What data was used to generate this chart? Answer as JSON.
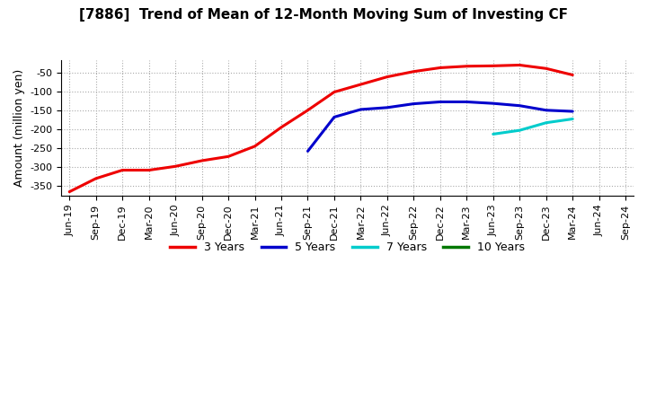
{
  "title": "[7886]  Trend of Mean of 12-Month Moving Sum of Investing CF",
  "ylabel": "Amount (million yen)",
  "background_color": "#ffffff",
  "plot_bg_color": "#ffffff",
  "grid_color": "#aaaaaa",
  "ylim": [
    -375,
    -18
  ],
  "yticks": [
    -350,
    -300,
    -250,
    -200,
    -150,
    -100,
    -50
  ],
  "series": {
    "3yr": {
      "color": "#ee0000",
      "label": "3 Years",
      "x": [
        "Jun-19",
        "Sep-19",
        "Dec-19",
        "Mar-20",
        "Jun-20",
        "Sep-20",
        "Dec-20",
        "Mar-21",
        "Jun-21",
        "Sep-21",
        "Dec-21",
        "Mar-22",
        "Jun-22",
        "Sep-22",
        "Dec-22",
        "Mar-23",
        "Jun-23",
        "Sep-23",
        "Dec-23",
        "Mar-24"
      ],
      "y": [
        -365,
        -330,
        -308,
        -308,
        -298,
        -283,
        -272,
        -245,
        -195,
        -150,
        -102,
        -82,
        -62,
        -48,
        -38,
        -34,
        -33,
        -31,
        -40,
        -57
      ]
    },
    "5yr": {
      "color": "#0000cc",
      "label": "5 Years",
      "x": [
        "Sep-21",
        "Dec-21",
        "Mar-22",
        "Jun-22",
        "Sep-22",
        "Dec-22",
        "Mar-23",
        "Jun-23",
        "Sep-23",
        "Dec-23",
        "Mar-24"
      ],
      "y": [
        -258,
        -168,
        -148,
        -143,
        -133,
        -128,
        -128,
        -132,
        -138,
        -150,
        -153
      ]
    },
    "7yr": {
      "color": "#00cccc",
      "label": "7 Years",
      "x": [
        "Jun-23",
        "Sep-23",
        "Dec-23",
        "Mar-24"
      ],
      "y": [
        -213,
        -203,
        -183,
        -173
      ]
    },
    "10yr": {
      "color": "#007700",
      "label": "10 Years",
      "x": [],
      "y": []
    }
  },
  "xtick_labels": [
    "Jun-19",
    "Sep-19",
    "Dec-19",
    "Mar-20",
    "Jun-20",
    "Sep-20",
    "Dec-20",
    "Mar-21",
    "Jun-21",
    "Sep-21",
    "Dec-21",
    "Mar-22",
    "Jun-22",
    "Sep-22",
    "Dec-22",
    "Mar-23",
    "Jun-23",
    "Sep-23",
    "Dec-23",
    "Mar-24",
    "Jun-24",
    "Sep-24"
  ],
  "title_fontsize": 11,
  "axis_fontsize": 9,
  "tick_fontsize": 8,
  "legend_fontsize": 9,
  "linewidth": 2.2
}
